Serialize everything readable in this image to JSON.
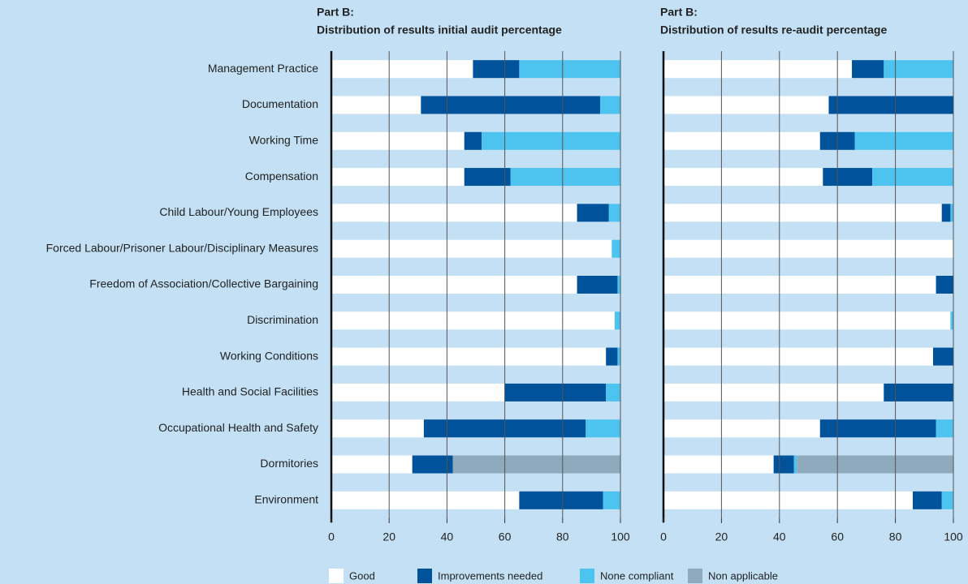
{
  "chart_data": [
    {
      "type": "bar",
      "orientation": "horizontal",
      "stacked": true,
      "title": "Part B:",
      "subtitle": "Distribution of results initial audit percentage",
      "categories": [
        "Management Practice",
        "Documentation",
        "Working Time",
        "Compensation",
        "Child Labour/Young Employees",
        "Forced Labour/Prisoner Labour/Disciplinary Measures",
        "Freedom of Association/Collective Bargaining",
        "Discrimination",
        "Working Conditions",
        "Health and Social Facilities",
        "Occupational Health and Safety",
        "Dormitories",
        "Environment"
      ],
      "series": [
        {
          "name": "Good",
          "color": "#ffffff",
          "values": [
            49,
            31,
            46,
            46,
            85,
            97,
            85,
            98,
            95,
            60,
            32,
            28,
            65
          ]
        },
        {
          "name": "Improvements needed",
          "color": "#00529b",
          "values": [
            16,
            62,
            6,
            16,
            11,
            0,
            14,
            0,
            4,
            35,
            56,
            14,
            29
          ]
        },
        {
          "name": "None compliant",
          "color": "#4dc3f0",
          "values": [
            35,
            7,
            48,
            38,
            4,
            3,
            1,
            2,
            1,
            5,
            12,
            0,
            6
          ]
        },
        {
          "name": "Non applicable",
          "color": "#8fa9bd",
          "values": [
            0,
            0,
            0,
            0,
            0,
            0,
            0,
            0,
            0,
            0,
            0,
            58,
            0
          ]
        }
      ],
      "xlim": [
        0,
        100
      ],
      "xticks": [
        0,
        20,
        40,
        60,
        80,
        100
      ],
      "grid": true
    },
    {
      "type": "bar",
      "orientation": "horizontal",
      "stacked": true,
      "title": "Part B:",
      "subtitle": "Distribution of results re-audit percentage",
      "series": [
        {
          "color": "#ffffff",
          "values": [
            65,
            57,
            54,
            55,
            96,
            100,
            94,
            99,
            93,
            76,
            54,
            38,
            86
          ]
        },
        {
          "color": "#00529b",
          "values": [
            11,
            43,
            12,
            17,
            3,
            0,
            6,
            0,
            7,
            24,
            40,
            7,
            10
          ]
        },
        {
          "color": "#4dc3f0",
          "values": [
            24,
            0,
            34,
            28,
            1,
            0,
            0,
            1,
            0,
            0,
            6,
            1,
            4
          ]
        },
        {
          "color": "#8fa9bd",
          "values": [
            0,
            0,
            0,
            0,
            0,
            0,
            0,
            0,
            0,
            0,
            0,
            54,
            0
          ]
        }
      ],
      "xlim": [
        0,
        100
      ],
      "xticks": [
        0,
        20,
        40,
        60,
        80,
        100
      ],
      "grid": true
    }
  ]
}
